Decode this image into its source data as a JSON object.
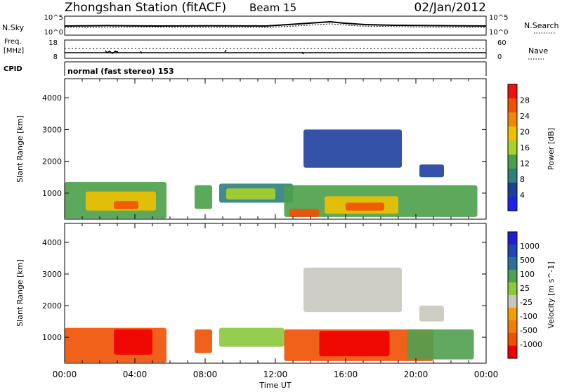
{
  "header": {
    "station": "Zhongshan Station (fitACF)",
    "beam": "Beam 15",
    "date": "02/Jan/2012"
  },
  "summary_panels": {
    "nsky": {
      "label": "N.Sky",
      "ticks_left": [
        "10^5",
        "10^0"
      ]
    },
    "nsearch": {
      "label": "N.Search",
      "ticks_right": [
        "10^5",
        "10^0"
      ]
    },
    "freq": {
      "label_line1": "Freq.",
      "label_line2": "[MHz]",
      "ticks_left": [
        "18",
        "8"
      ]
    },
    "nave": {
      "label": "Nave",
      "ticks_right": [
        "60",
        "0"
      ]
    },
    "cpid": {
      "label": "CPID",
      "value": "normal (fast stereo) 153"
    }
  },
  "colors": {
    "power_scale": [
      "#1f1ff0",
      "#1d3f9e",
      "#2f7f7f",
      "#4aa04a",
      "#a6d22a",
      "#f0c000",
      "#f08a00",
      "#f05000",
      "#f01010"
    ],
    "velocity_scale": [
      "#f00000",
      "#f05000",
      "#f07e00",
      "#f0a000",
      "#c8c8be",
      "#8cc83c",
      "#50a050",
      "#2e6e9e",
      "#2045b0",
      "#1e1ed2"
    ]
  },
  "chart_data": [
    {
      "type": "heatmap",
      "panel": "power",
      "xlabel": "Time UT",
      "ylabel": "Slant Range [km]",
      "xlim": [
        0,
        24
      ],
      "ylim": [
        180,
        4600
      ],
      "x_ticks": [
        "00:00",
        "04:00",
        "08:00",
        "12:00",
        "16:00",
        "20:00",
        "00:00"
      ],
      "y_ticks": [
        1000,
        2000,
        3000,
        4000
      ],
      "colorbar": {
        "label": "Power [dB]",
        "ticks": [
          4,
          8,
          12,
          16,
          20,
          24,
          28
        ],
        "range": [
          0,
          32
        ]
      },
      "regions": [
        {
          "t0": 0.0,
          "t1": 5.8,
          "r0": 200,
          "r1": 1350,
          "level": 12
        },
        {
          "t0": 1.2,
          "t1": 5.2,
          "r0": 450,
          "r1": 1050,
          "level": 22
        },
        {
          "t0": 2.8,
          "t1": 4.2,
          "r0": 500,
          "r1": 750,
          "level": 29
        },
        {
          "t0": 7.4,
          "t1": 8.4,
          "r0": 500,
          "r1": 1250,
          "level": 14
        },
        {
          "t0": 8.8,
          "t1": 13.0,
          "r0": 700,
          "r1": 1300,
          "level": 10
        },
        {
          "t0": 9.2,
          "t1": 12.0,
          "r0": 800,
          "r1": 1150,
          "level": 18
        },
        {
          "t0": 12.5,
          "t1": 23.5,
          "r0": 250,
          "r1": 1250,
          "level": 12
        },
        {
          "t0": 12.8,
          "t1": 14.5,
          "r0": 250,
          "r1": 500,
          "level": 29
        },
        {
          "t0": 14.8,
          "t1": 19.0,
          "r0": 350,
          "r1": 900,
          "level": 22
        },
        {
          "t0": 16.0,
          "t1": 18.2,
          "r0": 450,
          "r1": 700,
          "level": 29
        },
        {
          "t0": 13.6,
          "t1": 19.2,
          "r0": 1800,
          "r1": 3000,
          "level": 6
        },
        {
          "t0": 20.2,
          "t1": 21.6,
          "r0": 1500,
          "r1": 1900,
          "level": 6
        }
      ]
    },
    {
      "type": "heatmap",
      "panel": "velocity",
      "xlabel": "Time UT",
      "ylabel": "Slant Range [km]",
      "xlim": [
        0,
        24
      ],
      "ylim": [
        180,
        4600
      ],
      "x_ticks": [
        "00:00",
        "04:00",
        "08:00",
        "12:00",
        "16:00",
        "20:00",
        "00:00"
      ],
      "y_ticks": [
        1000,
        2000,
        3000,
        4000
      ],
      "colorbar": {
        "label": "Velocity [m s^-1]",
        "ticks": [
          1000,
          500,
          100,
          25,
          -25,
          -100,
          -500,
          -1000
        ]
      },
      "regions": [
        {
          "t0": 0.0,
          "t1": 5.8,
          "r0": 200,
          "r1": 1300,
          "level": -150
        },
        {
          "t0": 2.8,
          "t1": 5.0,
          "r0": 450,
          "r1": 1250,
          "level": -600
        },
        {
          "t0": 7.4,
          "t1": 8.4,
          "r0": 500,
          "r1": 1250,
          "level": -150
        },
        {
          "t0": 8.8,
          "t1": 12.5,
          "r0": 700,
          "r1": 1300,
          "level": 60
        },
        {
          "t0": 12.5,
          "t1": 21.0,
          "r0": 250,
          "r1": 1250,
          "level": -150
        },
        {
          "t0": 14.5,
          "t1": 18.5,
          "r0": 400,
          "r1": 1200,
          "level": -600
        },
        {
          "t0": 19.5,
          "t1": 23.3,
          "r0": 300,
          "r1": 1250,
          "level": 150
        },
        {
          "t0": 13.6,
          "t1": 19.2,
          "r0": 1800,
          "r1": 3200,
          "level": 0
        },
        {
          "t0": 20.2,
          "t1": 21.6,
          "r0": 1500,
          "r1": 2000,
          "level": 0
        }
      ]
    }
  ]
}
